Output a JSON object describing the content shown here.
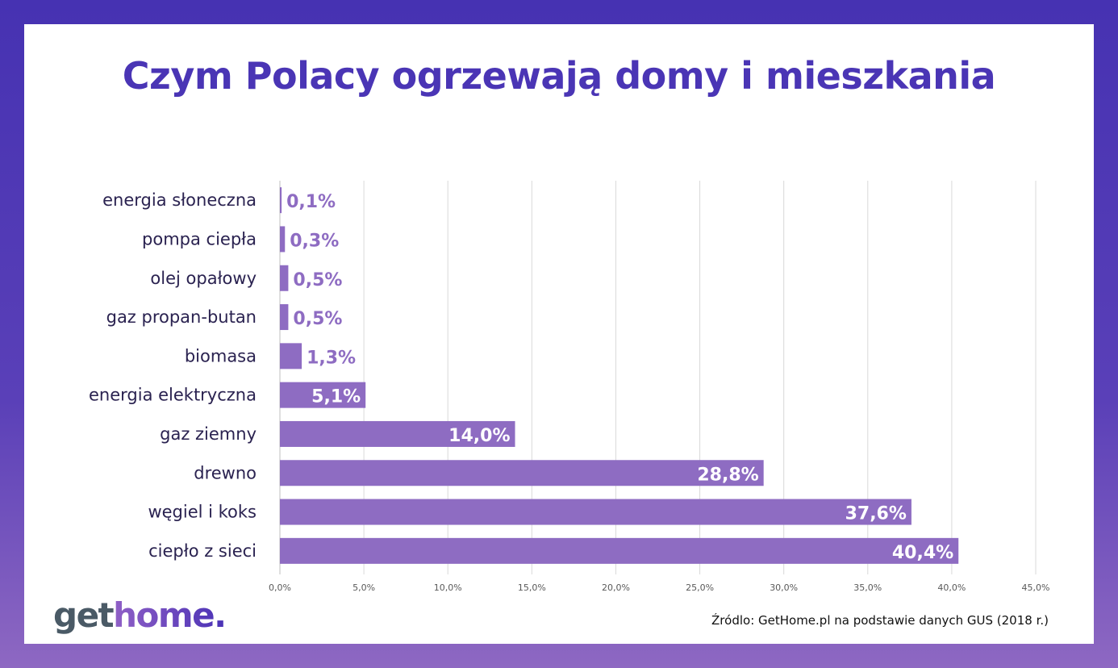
{
  "chart_data": {
    "type": "bar",
    "orientation": "horizontal",
    "title": "Czym Polacy ogrzewają domy i mieszkania",
    "categories": [
      "energia słoneczna",
      "pompa ciepła",
      "olej opałowy",
      "gaz propan-butan",
      "biomasa",
      "energia elektryczna",
      "gaz ziemny",
      "drewno",
      "węgiel i koks",
      "ciepło z sieci"
    ],
    "values": [
      0.1,
      0.3,
      0.5,
      0.5,
      1.3,
      5.1,
      14.0,
      28.8,
      37.6,
      40.4
    ],
    "data_labels": [
      "0,1%",
      "0,3%",
      "0,5%",
      "0,5%",
      "1,3%",
      "5,1%",
      "14,0%",
      "28,8%",
      "37,6%",
      "40,4%"
    ],
    "xlim": [
      0,
      45
    ],
    "xticks": [
      "0,0%",
      "5,0%",
      "10,0%",
      "15,0%",
      "20,0%",
      "25,0%",
      "30,0%",
      "35,0%",
      "40,0%",
      "45,0%"
    ],
    "grid": true,
    "bar_color": "#8e6cc2",
    "title_color": "#4a35b5"
  },
  "source": "Źródlo: GetHome.pl na podstawie danych GUS (2018 r.)",
  "logo": {
    "part1": "get",
    "part2": "home."
  }
}
